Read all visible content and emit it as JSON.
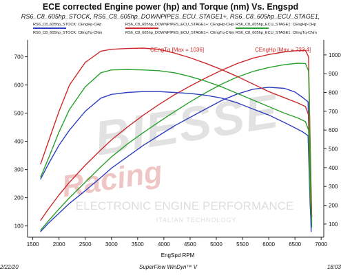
{
  "header": {
    "title": "ECE corrected Engine power (hp) and Torque (nm) Vs. Engspd",
    "subtitle": "RS6_C8_605hp_STOCK, RS6_C8_605hp_DOWNPIPES_ECU_STAGE1+, RS6_C8_605hp_ECU_STAGE1,"
  },
  "legend": [
    {
      "label": "RS6_C8_605hp_STOCK: CEngHp-CHp",
      "color": "#2d3fbf"
    },
    {
      "label": "RS6_C8_605hp_DOWNPIPES_ECU_STAGE1+: CEngHp-CHp",
      "color": "#cc2a2a"
    },
    {
      "label": "RS6_C8_605hp_ECU_STAGE1: CEngHp-CHp",
      "color": "#27a12b"
    },
    {
      "label": "RS6_C8_605hp_STOCK: CEngTq-CNm",
      "color": "#2d3fbf"
    },
    {
      "label": "RS6_C8_605hp_DOWNPIPES_ECU_STAGE1+: CEngTq-CNm",
      "color": "#cc2a2a"
    },
    {
      "label": "RS6_C8_605hp_ECU_STAGE1: CEngTq-CNm",
      "color": "#27a12b"
    }
  ],
  "annotations": {
    "tq_max": "CEngTq [Max = 1036]",
    "hp_max": "CEngHp [Max = 723.4]"
  },
  "watermark": {
    "brand": "BIESSE",
    "script": "Racing",
    "line1": "ELECTRONIC ENGINE PERFORMANCE",
    "line2": "ITALIAN TECHNOLOGY"
  },
  "footer": {
    "date": "2/22/20",
    "software": "SuperFlow WinDyn™ V",
    "time": "18:03"
  },
  "colors": {
    "stock": "#2d3fbf",
    "downpipes": "#cc2a2a",
    "stage1": "#27a12b",
    "axis": "#222222"
  },
  "chart_data": {
    "type": "line",
    "title": "ECE corrected Engine power (hp) and Torque (nm) Vs. Engspd",
    "xlabel": "EngSpd RPM",
    "x_ticks": [
      1500,
      2000,
      2500,
      3000,
      3500,
      4000,
      4500,
      5000,
      5500,
      6000,
      6500,
      7000
    ],
    "x_tick_labels": [
      "1500",
      "2000",
      "2500",
      "3000",
      "3500",
      "4000",
      "4500",
      "5000",
      "5500",
      "6000",
      "6500",
      "7000"
    ],
    "xlim": [
      1400,
      7050
    ],
    "y_left": {
      "ticks": [
        100,
        200,
        300,
        400,
        500,
        600,
        700
      ],
      "ylim": [
        60,
        760
      ]
    },
    "y_right": {
      "ticks": [
        100,
        200,
        300,
        400,
        500,
        600,
        700,
        800,
        900,
        1000
      ],
      "tick_labels": [
        "100",
        "200",
        "300",
        "400",
        "500",
        "600",
        "700",
        "800",
        "900",
        "1000"
      ],
      "ylim": [
        30,
        1080
      ]
    },
    "grid": false,
    "legend_position": "top",
    "series": [
      {
        "name": "RS6_C8_605hp_STOCK: CEngHp-CHp",
        "axis": "left",
        "color": "#2d3fbf",
        "points": [
          [
            1650,
            80
          ],
          [
            1800,
            110
          ],
          [
            2000,
            145
          ],
          [
            2200,
            180
          ],
          [
            2500,
            225
          ],
          [
            2800,
            272
          ],
          [
            3000,
            305
          ],
          [
            3300,
            345
          ],
          [
            3600,
            385
          ],
          [
            3900,
            420
          ],
          [
            4200,
            455
          ],
          [
            4500,
            485
          ],
          [
            4800,
            515
          ],
          [
            5100,
            545
          ],
          [
            5400,
            568
          ],
          [
            5700,
            585
          ],
          [
            6000,
            592
          ],
          [
            6300,
            588
          ],
          [
            6500,
            575
          ],
          [
            6650,
            555
          ],
          [
            6750,
            540
          ],
          [
            6790,
            250
          ],
          [
            6810,
            80
          ]
        ]
      },
      {
        "name": "RS6_C8_605hp_DOWNPIPES_ECU_STAGE1+: CEngHp-CHp",
        "axis": "left",
        "color": "#cc2a2a",
        "points": [
          [
            1650,
            120
          ],
          [
            1800,
            160
          ],
          [
            2000,
            210
          ],
          [
            2200,
            255
          ],
          [
            2500,
            315
          ],
          [
            2800,
            370
          ],
          [
            3000,
            405
          ],
          [
            3300,
            450
          ],
          [
            3600,
            492
          ],
          [
            3900,
            530
          ],
          [
            4200,
            565
          ],
          [
            4500,
            596
          ],
          [
            4800,
            625
          ],
          [
            5100,
            652
          ],
          [
            5400,
            676
          ],
          [
            5700,
            695
          ],
          [
            6000,
            708
          ],
          [
            6300,
            717
          ],
          [
            6550,
            722
          ],
          [
            6700,
            723
          ],
          [
            6760,
            700
          ],
          [
            6790,
            400
          ],
          [
            6820,
            130
          ]
        ]
      },
      {
        "name": "RS6_C8_605hp_ECU_STAGE1: CEngHp-CHp",
        "axis": "left",
        "color": "#27a12b",
        "points": [
          [
            1650,
            85
          ],
          [
            1800,
            118
          ],
          [
            2000,
            160
          ],
          [
            2200,
            200
          ],
          [
            2500,
            255
          ],
          [
            2800,
            310
          ],
          [
            3000,
            345
          ],
          [
            3300,
            390
          ],
          [
            3600,
            430
          ],
          [
            3900,
            468
          ],
          [
            4200,
            505
          ],
          [
            4500,
            540
          ],
          [
            4800,
            573
          ],
          [
            5100,
            603
          ],
          [
            5400,
            628
          ],
          [
            5700,
            648
          ],
          [
            6000,
            662
          ],
          [
            6300,
            672
          ],
          [
            6550,
            677
          ],
          [
            6700,
            676
          ],
          [
            6760,
            650
          ],
          [
            6790,
            380
          ],
          [
            6820,
            95
          ]
        ]
      },
      {
        "name": "RS6_C8_605hp_STOCK: CEngTq-CNm",
        "axis": "right",
        "color": "#2d3fbf",
        "points": [
          [
            1650,
            340
          ],
          [
            1800,
            420
          ],
          [
            2000,
            520
          ],
          [
            2200,
            600
          ],
          [
            2500,
            700
          ],
          [
            2800,
            770
          ],
          [
            3000,
            790
          ],
          [
            3300,
            800
          ],
          [
            3600,
            805
          ],
          [
            3900,
            805
          ],
          [
            4200,
            800
          ],
          [
            4500,
            795
          ],
          [
            4800,
            785
          ],
          [
            5100,
            770
          ],
          [
            5400,
            745
          ],
          [
            5700,
            712
          ],
          [
            6000,
            680
          ],
          [
            6300,
            640
          ],
          [
            6500,
            612
          ],
          [
            6650,
            590
          ],
          [
            6750,
            570
          ],
          [
            6790,
            200
          ],
          [
            6810,
            90
          ]
        ]
      },
      {
        "name": "RS6_C8_605hp_DOWNPIPES_ECU_STAGE1+: CEngTq-CNm",
        "axis": "right",
        "color": "#cc2a2a",
        "points": [
          [
            1650,
            420
          ],
          [
            1800,
            540
          ],
          [
            2000,
            700
          ],
          [
            2200,
            840
          ],
          [
            2500,
            960
          ],
          [
            2800,
            1020
          ],
          [
            3000,
            1030
          ],
          [
            3300,
            1034
          ],
          [
            3600,
            1036
          ],
          [
            3900,
            1030
          ],
          [
            4200,
            1010
          ],
          [
            4500,
            985
          ],
          [
            4800,
            955
          ],
          [
            5100,
            922
          ],
          [
            5400,
            885
          ],
          [
            5700,
            845
          ],
          [
            6000,
            805
          ],
          [
            6300,
            772
          ],
          [
            6550,
            745
          ],
          [
            6700,
            725
          ],
          [
            6760,
            680
          ],
          [
            6790,
            300
          ],
          [
            6820,
            140
          ]
        ]
      },
      {
        "name": "RS6_C8_605hp_ECU_STAGE1: CEngTq-CNm",
        "axis": "right",
        "color": "#27a12b",
        "points": [
          [
            1650,
            350
          ],
          [
            1800,
            450
          ],
          [
            2000,
            590
          ],
          [
            2200,
            710
          ],
          [
            2500,
            830
          ],
          [
            2800,
            905
          ],
          [
            3000,
            920
          ],
          [
            3300,
            922
          ],
          [
            3600,
            920
          ],
          [
            3900,
            916
          ],
          [
            4200,
            905
          ],
          [
            4500,
            885
          ],
          [
            4800,
            860
          ],
          [
            5100,
            830
          ],
          [
            5400,
            795
          ],
          [
            5700,
            760
          ],
          [
            6000,
            725
          ],
          [
            6300,
            690
          ],
          [
            6550,
            665
          ],
          [
            6700,
            645
          ],
          [
            6760,
            600
          ],
          [
            6790,
            250
          ],
          [
            6820,
            110
          ]
        ]
      }
    ]
  }
}
